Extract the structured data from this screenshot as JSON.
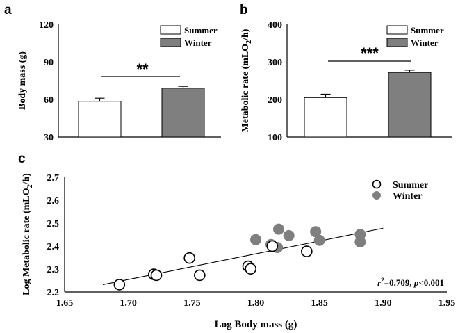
{
  "chart_data": [
    {
      "panel": "a",
      "type": "bar",
      "ylabel": "Body mass (g)",
      "yticks": [
        "30",
        "60",
        "90",
        "120"
      ],
      "ylim": [
        30,
        120
      ],
      "categories": [
        "Summer",
        "Winter"
      ],
      "values": [
        58.5,
        69
      ],
      "errors": [
        2.5,
        1.5
      ],
      "colors": [
        "#ffffff",
        "#7f7f7f"
      ],
      "legend": [
        {
          "name": "Summer",
          "color": "#ffffff"
        },
        {
          "name": "Winter",
          "color": "#7f7f7f"
        }
      ],
      "legend_position": "top-right",
      "significance": "**"
    },
    {
      "panel": "b",
      "type": "bar",
      "ylabel": "Metabolic rate (mLO2/h)",
      "ylabel_main": "Metabolic rate  (mLO",
      "ylabel_sub": "2",
      "ylabel_tail": "/h)",
      "yticks": [
        "100",
        "200",
        "300",
        "400"
      ],
      "ylim": [
        100,
        400
      ],
      "categories": [
        "Summer",
        "Winter"
      ],
      "values": [
        205,
        272
      ],
      "errors": [
        9,
        6
      ],
      "colors": [
        "#ffffff",
        "#7f7f7f"
      ],
      "legend": [
        {
          "name": "Summer",
          "color": "#ffffff"
        },
        {
          "name": "Winter",
          "color": "#7f7f7f"
        }
      ],
      "legend_position": "top-right",
      "significance": "***"
    },
    {
      "panel": "c",
      "type": "scatter",
      "xlabel": "Log Body mass (g)",
      "ylabel": "Log Metabolic rate (mLO2/h)",
      "ylabel_main": "Log Metabolic rate  (mLO",
      "ylabel_sub": "2",
      "ylabel_tail": "/h)",
      "xlim": [
        1.65,
        1.95
      ],
      "ylim": [
        2.2,
        2.7
      ],
      "xticks": [
        "1.65",
        "1.70",
        "1.75",
        "1.80",
        "1.85",
        "1.90",
        "1.95"
      ],
      "yticks": [
        "2.2",
        "2.3",
        "2.4",
        "2.5",
        "2.6",
        "2.7"
      ],
      "legend_position": "top-right",
      "series": [
        {
          "name": "Summer",
          "marker": "open-circle",
          "color": "#000000",
          "points": [
            [
              1.693,
              2.232
            ],
            [
              1.72,
              2.277
            ],
            [
              1.722,
              2.273
            ],
            [
              1.748,
              2.348
            ],
            [
              1.756,
              2.273
            ],
            [
              1.794,
              2.312
            ],
            [
              1.796,
              2.301
            ],
            [
              1.813,
              2.4
            ],
            [
              1.84,
              2.377
            ]
          ]
        },
        {
          "name": "Winter",
          "marker": "filled-circle",
          "color": "#7f7f7f",
          "points": [
            [
              1.8,
              2.428
            ],
            [
              1.812,
              2.407
            ],
            [
              1.817,
              2.394
            ],
            [
              1.818,
              2.474
            ],
            [
              1.826,
              2.446
            ],
            [
              1.847,
              2.463
            ],
            [
              1.85,
              2.425
            ],
            [
              1.882,
              2.451
            ],
            [
              1.882,
              2.418
            ]
          ]
        }
      ],
      "regression": {
        "x": [
          1.68,
          1.9
        ],
        "y": [
          2.232,
          2.478
        ]
      },
      "annotation": {
        "r_symbol": "r",
        "r_sup": "2",
        "r_value": "=0.709, ",
        "p_symbol": "p",
        "p_value": "<0.001"
      }
    }
  ],
  "panel_labels": [
    "a",
    "b",
    "c"
  ]
}
